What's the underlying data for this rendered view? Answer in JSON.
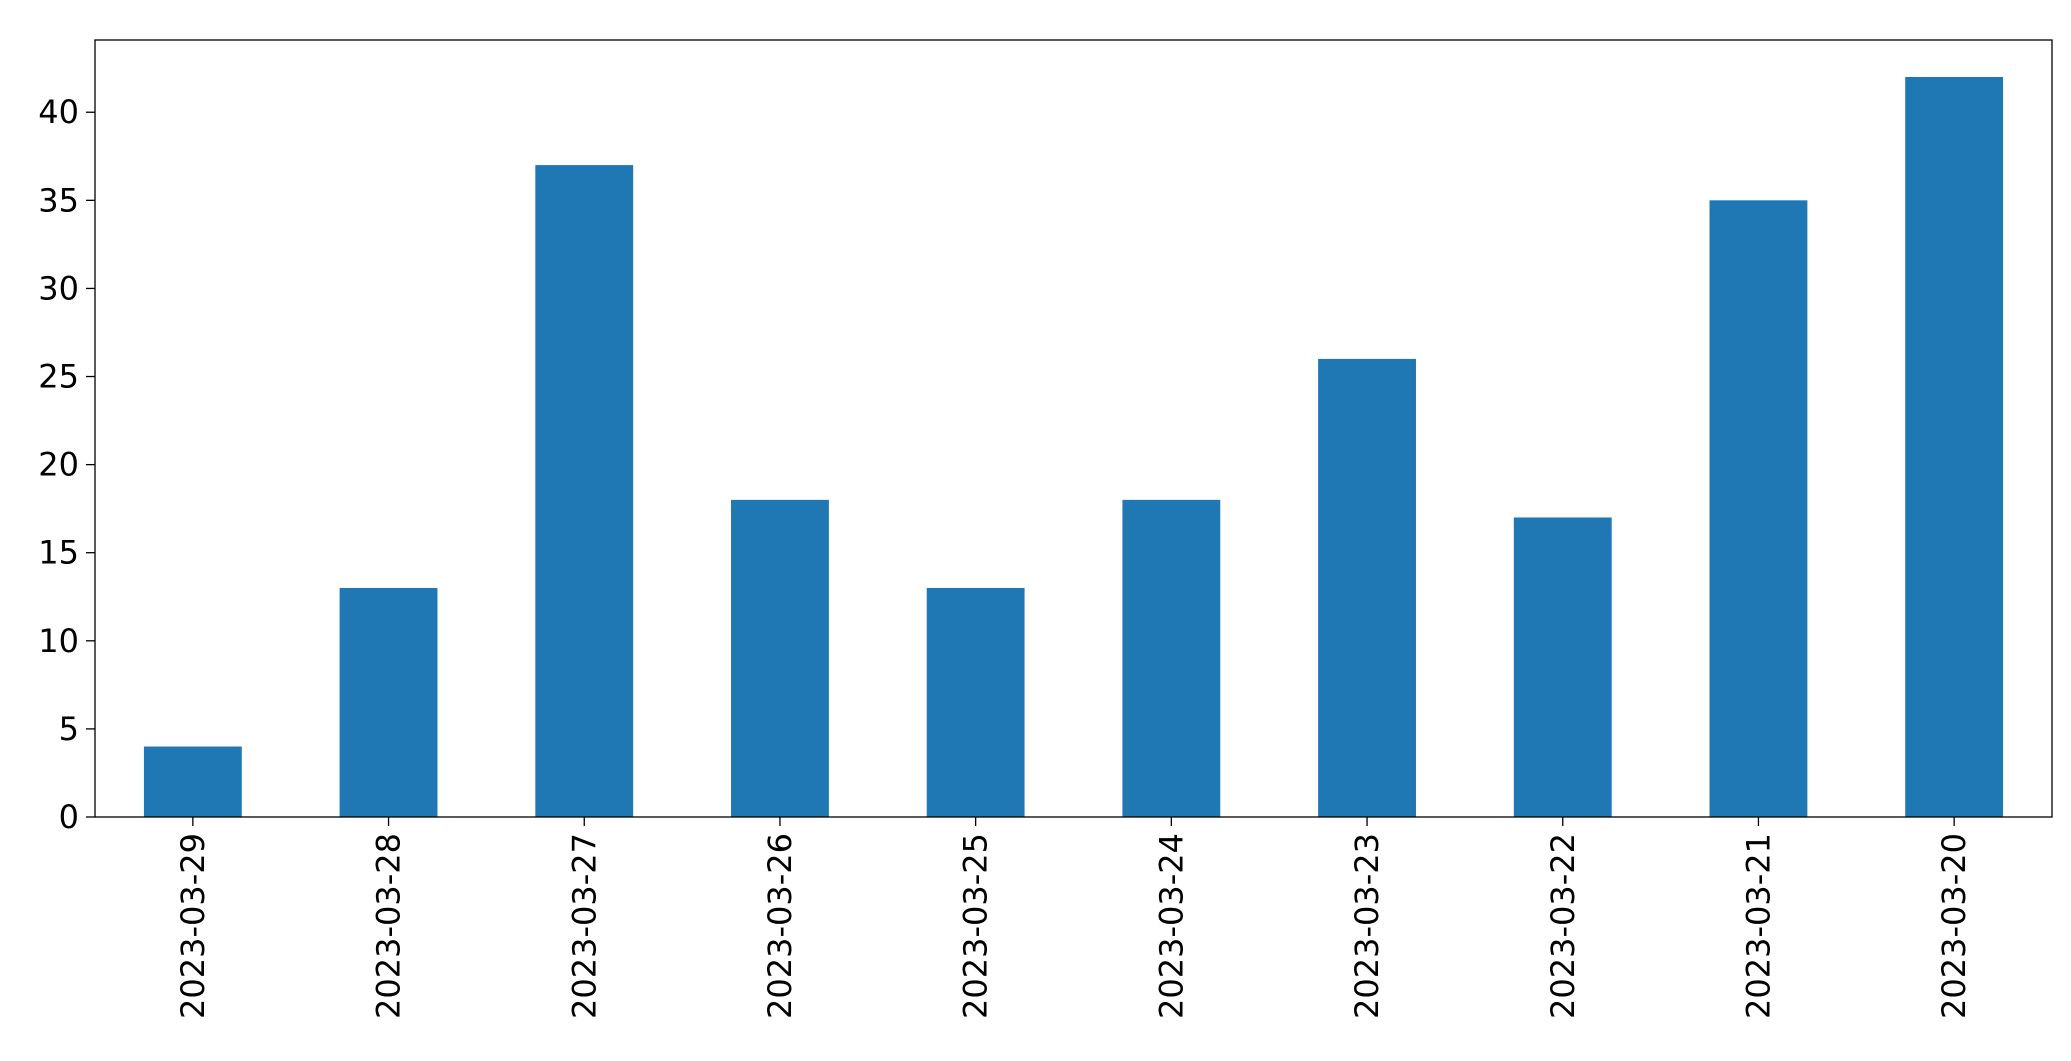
{
  "chart_data": {
    "type": "bar",
    "categories": [
      "2023-03-29",
      "2023-03-28",
      "2023-03-27",
      "2023-03-26",
      "2023-03-25",
      "2023-03-24",
      "2023-03-23",
      "2023-03-22",
      "2023-03-21",
      "2023-03-20"
    ],
    "values": [
      4,
      13,
      37,
      18,
      13,
      18,
      26,
      17,
      35,
      42
    ],
    "color": "#1f77b4",
    "ylim": [
      0,
      44.1
    ],
    "yticks": [
      0,
      5,
      10,
      15,
      20,
      25,
      30,
      35,
      40
    ],
    "grid": false
  }
}
